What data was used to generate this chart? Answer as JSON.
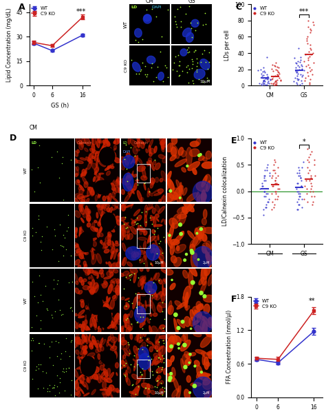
{
  "panel_A": {
    "xlabel": "GS (h)",
    "ylabel": "Lipid Concentration (mg/dL)",
    "xticks": [
      0,
      6,
      16
    ],
    "WT_mean": [
      26.0,
      21.5,
      31.0
    ],
    "WT_err": [
      1.0,
      0.8,
      1.0
    ],
    "C9KO_mean": [
      26.5,
      24.5,
      42.0
    ],
    "C9KO_err": [
      1.0,
      0.8,
      1.5
    ],
    "ylim": [
      0,
      50
    ],
    "yticks": [
      0,
      15,
      30,
      45
    ],
    "significance": "***"
  },
  "panel_C": {
    "ylabel": "LDs per cell",
    "ylim": [
      0,
      100
    ],
    "yticks": [
      0,
      20,
      40,
      60,
      80,
      100
    ],
    "xtick_labels": [
      "CM",
      "GS"
    ],
    "significance": "***",
    "WT_CM": [
      0,
      1,
      1,
      2,
      2,
      3,
      3,
      3,
      4,
      4,
      5,
      5,
      5,
      6,
      6,
      7,
      7,
      8,
      8,
      9,
      9,
      10,
      10,
      11,
      12,
      13,
      14,
      15,
      16,
      17,
      18,
      19,
      20,
      22,
      35
    ],
    "C9KO_CM": [
      0,
      1,
      1,
      2,
      2,
      3,
      3,
      4,
      4,
      5,
      5,
      6,
      6,
      7,
      7,
      8,
      9,
      10,
      11,
      12,
      13,
      14,
      15,
      16,
      17,
      18,
      19,
      20,
      21,
      22,
      23,
      24,
      25,
      26,
      28
    ],
    "WT_GS": [
      1,
      2,
      3,
      4,
      5,
      6,
      7,
      8,
      9,
      10,
      11,
      12,
      13,
      14,
      15,
      16,
      17,
      18,
      19,
      20,
      21,
      22,
      23,
      24,
      25,
      26,
      27,
      28,
      29,
      30,
      32,
      34,
      35,
      38,
      46
    ],
    "C9KO_GS": [
      2,
      4,
      6,
      8,
      10,
      12,
      14,
      16,
      18,
      20,
      22,
      24,
      26,
      28,
      30,
      32,
      34,
      36,
      38,
      40,
      42,
      44,
      46,
      50,
      52,
      55,
      58,
      60,
      65,
      68,
      70,
      72,
      75,
      78,
      80
    ]
  },
  "panel_E": {
    "ylabel": "LD/Calnexin colocalization",
    "ylim": [
      -1,
      1
    ],
    "yticks": [
      -1,
      -0.5,
      0,
      0.5,
      1
    ],
    "xtick_labels": [
      "CM",
      "GS"
    ],
    "significance": "*",
    "WT_CM": [
      -0.45,
      -0.35,
      -0.3,
      -0.25,
      -0.2,
      -0.15,
      -0.1,
      -0.05,
      0,
      0,
      0.05,
      0.1,
      0.15,
      0.2,
      0.25,
      0.3,
      0.35,
      0.4,
      0.45,
      0.5,
      0.4,
      0.3,
      0.1,
      -0.1,
      -0.2,
      -0.3,
      0.2,
      0.3,
      0.0,
      -0.05
    ],
    "C9KO_CM": [
      -0.35,
      -0.25,
      -0.15,
      -0.05,
      0.05,
      0.1,
      0.15,
      0.2,
      0.25,
      0.3,
      0.35,
      0.4,
      0.45,
      0.5,
      0.55,
      0.6,
      -0.05,
      -0.1,
      -0.15,
      0.0,
      0.1,
      0.2,
      -0.2,
      0.4,
      0.3,
      0.15,
      -0.3,
      0.0,
      0.25,
      0.05
    ],
    "WT_GS": [
      -0.35,
      -0.25,
      -0.15,
      -0.05,
      0.05,
      0.15,
      0.25,
      0.35,
      0.45,
      0.55,
      -0.1,
      -0.2,
      -0.3,
      0.1,
      0.2,
      0.3,
      0.4,
      -0.15,
      0.0,
      0.1,
      -0.05,
      0.25,
      0.35,
      -0.25,
      0.15,
      -0.35,
      0.45,
      0.0,
      -0.1,
      0.3
    ],
    "C9KO_GS": [
      -0.2,
      -0.1,
      0.0,
      0.1,
      0.2,
      0.3,
      0.4,
      0.5,
      0.6,
      0.7,
      0.8,
      -0.05,
      -0.15,
      -0.25,
      0.05,
      0.15,
      0.25,
      0.35,
      0.45,
      0.55,
      0.65,
      0.75,
      -0.1,
      0.0,
      0.1,
      0.2,
      -0.2,
      0.3,
      0.05,
      0.6
    ]
  },
  "panel_F": {
    "xlabel": "GS (h)",
    "ylabel": "FFA Concentration (nmol/μl)",
    "xticks": [
      0,
      6,
      16
    ],
    "WT_mean": [
      0.68,
      0.62,
      1.18
    ],
    "WT_err": [
      0.03,
      0.03,
      0.06
    ],
    "C9KO_mean": [
      0.7,
      0.68,
      1.55
    ],
    "C9KO_err": [
      0.03,
      0.04,
      0.06
    ],
    "ylim": [
      0,
      1.8
    ],
    "yticks": [
      0,
      0.6,
      1.2,
      1.8
    ],
    "significance": "**"
  },
  "colors": {
    "WT": "#3333cc",
    "C9KO": "#cc2222"
  }
}
